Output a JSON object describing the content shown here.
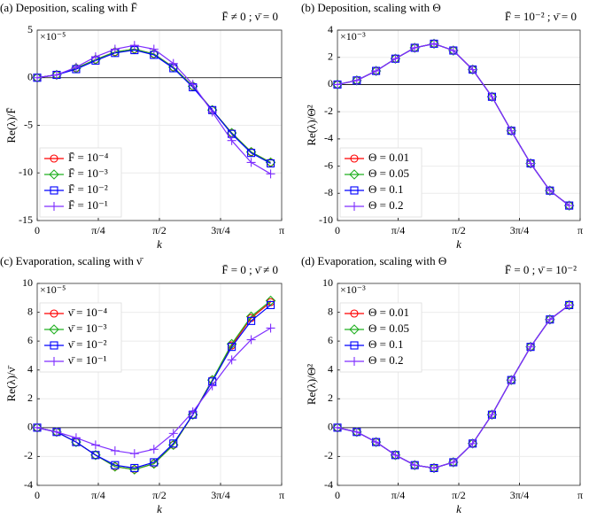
{
  "chart_data": [
    {
      "type": "line",
      "title": "(a) Deposition, scaling with F̄",
      "annotation": "F̄ ≠ 0 ; ν̄ = 0",
      "xlabel": "k",
      "ylabel": "Re(λ)/F̄",
      "multiplier": "×10⁻⁵",
      "legend": "southwest",
      "grid": true,
      "x": [
        0,
        0.25,
        0.5,
        0.75,
        1,
        1.25,
        1.5,
        1.75,
        2,
        2.25,
        2.5,
        2.75,
        3
      ],
      "xlim": [
        0,
        3.1416
      ],
      "xticks": [
        0,
        {
          "value": 0.7854,
          "label": "π/4"
        },
        {
          "value": 1.5708,
          "label": "π/2"
        },
        {
          "value": 2.3562,
          "label": "3π/4"
        },
        {
          "value": 3.1416,
          "label": "π"
        }
      ],
      "ylim": [
        -15,
        5
      ],
      "yticks": [
        -15,
        -10,
        -5,
        0,
        5
      ],
      "series": [
        {
          "name": "F̄ = 10⁻⁴",
          "color": "#ff0000",
          "marker": "circle",
          "values": [
            0,
            0.3,
            1.0,
            1.9,
            2.7,
            3.0,
            2.5,
            1.1,
            -0.9,
            -3.4,
            -5.8,
            -7.8,
            -8.9
          ]
        },
        {
          "name": "F̄ = 10⁻³",
          "color": "#22b022",
          "marker": "diamond",
          "values": [
            0,
            0.3,
            1.0,
            1.9,
            2.7,
            3.0,
            2.5,
            1.1,
            -0.9,
            -3.4,
            -5.8,
            -7.8,
            -8.9
          ]
        },
        {
          "name": "F̄ = 10⁻²",
          "color": "#0000ff",
          "marker": "square",
          "values": [
            0,
            0.3,
            0.9,
            1.8,
            2.6,
            2.9,
            2.4,
            1.0,
            -1.0,
            -3.4,
            -5.9,
            -7.9,
            -9.0
          ]
        },
        {
          "name": "F̄ = 10⁻¹",
          "color": "#7f2fff",
          "marker": "plus",
          "values": [
            0,
            0.3,
            1.1,
            2.2,
            3.0,
            3.4,
            3.0,
            1.5,
            -0.7,
            -3.6,
            -6.6,
            -8.9,
            -10.1
          ]
        }
      ]
    },
    {
      "type": "line",
      "title": "(b) Deposition, scaling with Θ",
      "annotation": "F̄ = 10⁻² ; ν̄ = 0",
      "xlabel": "k",
      "ylabel": "Re(λ)/Θ²",
      "multiplier": "×10⁻³",
      "legend": "southwest",
      "grid": true,
      "x": [
        0,
        0.25,
        0.5,
        0.75,
        1,
        1.25,
        1.5,
        1.75,
        2,
        2.25,
        2.5,
        2.75,
        3
      ],
      "xlim": [
        0,
        3.1416
      ],
      "xticks": [
        0,
        {
          "value": 0.7854,
          "label": "π/4"
        },
        {
          "value": 1.5708,
          "label": "π/2"
        },
        {
          "value": 2.3562,
          "label": "3π/4"
        },
        {
          "value": 3.1416,
          "label": "π"
        }
      ],
      "ylim": [
        -10,
        4
      ],
      "yticks": [
        -10,
        -8,
        -6,
        -4,
        -2,
        0,
        2,
        4
      ],
      "series": [
        {
          "name": "Θ = 0.01",
          "color": "#ff0000",
          "marker": "circle",
          "values": [
            0,
            0.3,
            1.0,
            1.9,
            2.7,
            3.0,
            2.5,
            1.1,
            -0.9,
            -3.4,
            -5.8,
            -7.8,
            -8.9
          ]
        },
        {
          "name": "Θ = 0.05",
          "color": "#22b022",
          "marker": "diamond",
          "values": [
            0,
            0.3,
            1.0,
            1.9,
            2.7,
            3.0,
            2.5,
            1.1,
            -0.9,
            -3.4,
            -5.8,
            -7.8,
            -8.9
          ]
        },
        {
          "name": "Θ = 0.1",
          "color": "#0000ff",
          "marker": "square",
          "values": [
            0,
            0.3,
            1.0,
            1.9,
            2.7,
            3.0,
            2.5,
            1.1,
            -0.9,
            -3.4,
            -5.8,
            -7.8,
            -8.9
          ]
        },
        {
          "name": "Θ = 0.2",
          "color": "#7f2fff",
          "marker": "plus",
          "values": [
            0,
            0.3,
            1.0,
            1.9,
            2.7,
            3.0,
            2.5,
            1.1,
            -0.9,
            -3.4,
            -5.8,
            -7.8,
            -8.9
          ]
        }
      ]
    },
    {
      "type": "line",
      "title": "(c) Evaporation, scaling with ν̄",
      "annotation": "F̄ = 0 ; ν̄ ≠ 0",
      "xlabel": "k",
      "ylabel": "Re(λ)/ν̄",
      "multiplier": "×10⁻⁵",
      "legend": "northwest",
      "grid": true,
      "x": [
        0,
        0.25,
        0.5,
        0.75,
        1,
        1.25,
        1.5,
        1.75,
        2,
        2.25,
        2.5,
        2.75,
        3
      ],
      "xlim": [
        0,
        3.1416
      ],
      "xticks": [
        0,
        {
          "value": 0.7854,
          "label": "π/4"
        },
        {
          "value": 1.5708,
          "label": "π/2"
        },
        {
          "value": 2.3562,
          "label": "3π/4"
        },
        {
          "value": 3.1416,
          "label": "π"
        }
      ],
      "ylim": [
        -4,
        10
      ],
      "yticks": [
        -4,
        -2,
        0,
        2,
        4,
        6,
        8,
        10
      ],
      "series": [
        {
          "name": "ν̄ = 10⁻⁴",
          "color": "#ff0000",
          "marker": "circle",
          "values": [
            0,
            -0.3,
            -1.0,
            -1.9,
            -2.7,
            -2.9,
            -2.5,
            -1.2,
            0.9,
            3.3,
            5.7,
            7.6,
            8.7
          ]
        },
        {
          "name": "ν̄ = 10⁻³",
          "color": "#22b022",
          "marker": "diamond",
          "values": [
            0,
            -0.3,
            -1.0,
            -1.9,
            -2.7,
            -2.9,
            -2.5,
            -1.2,
            0.9,
            3.3,
            5.8,
            7.7,
            8.8
          ]
        },
        {
          "name": "ν̄ = 10⁻²",
          "color": "#0000ff",
          "marker": "square",
          "values": [
            0,
            -0.3,
            -1.0,
            -1.9,
            -2.6,
            -2.8,
            -2.4,
            -1.1,
            0.9,
            3.2,
            5.6,
            7.4,
            8.5
          ]
        },
        {
          "name": "ν̄ = 10⁻¹",
          "color": "#7f2fff",
          "marker": "plus",
          "values": [
            0,
            -0.3,
            -0.7,
            -1.2,
            -1.6,
            -1.8,
            -1.5,
            -0.4,
            1.1,
            2.9,
            4.7,
            6.1,
            6.9
          ]
        }
      ]
    },
    {
      "type": "line",
      "title": "(d) Evaporation, scaling with Θ",
      "annotation": "F̄ = 0 ; ν̄ = 10⁻²",
      "xlabel": "k",
      "ylabel": "Re(λ)/Θ²",
      "multiplier": "×10⁻³",
      "legend": "northwest",
      "grid": true,
      "x": [
        0,
        0.25,
        0.5,
        0.75,
        1,
        1.25,
        1.5,
        1.75,
        2,
        2.25,
        2.5,
        2.75,
        3
      ],
      "xlim": [
        0,
        3.1416
      ],
      "xticks": [
        0,
        {
          "value": 0.7854,
          "label": "π/4"
        },
        {
          "value": 1.5708,
          "label": "π/2"
        },
        {
          "value": 2.3562,
          "label": "3π/4"
        },
        {
          "value": 3.1416,
          "label": "π"
        }
      ],
      "ylim": [
        -4,
        10
      ],
      "yticks": [
        -4,
        -2,
        0,
        2,
        4,
        6,
        8,
        10
      ],
      "series": [
        {
          "name": "Θ = 0.01",
          "color": "#ff0000",
          "marker": "circle",
          "values": [
            0,
            -0.3,
            -1.0,
            -1.9,
            -2.6,
            -2.8,
            -2.4,
            -1.1,
            0.9,
            3.3,
            5.6,
            7.5,
            8.5
          ]
        },
        {
          "name": "Θ = 0.05",
          "color": "#22b022",
          "marker": "diamond",
          "values": [
            0,
            -0.3,
            -1.0,
            -1.9,
            -2.6,
            -2.8,
            -2.4,
            -1.1,
            0.9,
            3.3,
            5.6,
            7.5,
            8.5
          ]
        },
        {
          "name": "Θ = 0.1",
          "color": "#0000ff",
          "marker": "square",
          "values": [
            0,
            -0.3,
            -1.0,
            -1.9,
            -2.6,
            -2.8,
            -2.4,
            -1.1,
            0.9,
            3.3,
            5.6,
            7.5,
            8.5
          ]
        },
        {
          "name": "Θ = 0.2",
          "color": "#7f2fff",
          "marker": "plus",
          "values": [
            0,
            -0.3,
            -1.0,
            -1.9,
            -2.6,
            -2.8,
            -2.4,
            -1.1,
            0.9,
            3.3,
            5.6,
            7.5,
            8.5
          ]
        }
      ]
    }
  ]
}
